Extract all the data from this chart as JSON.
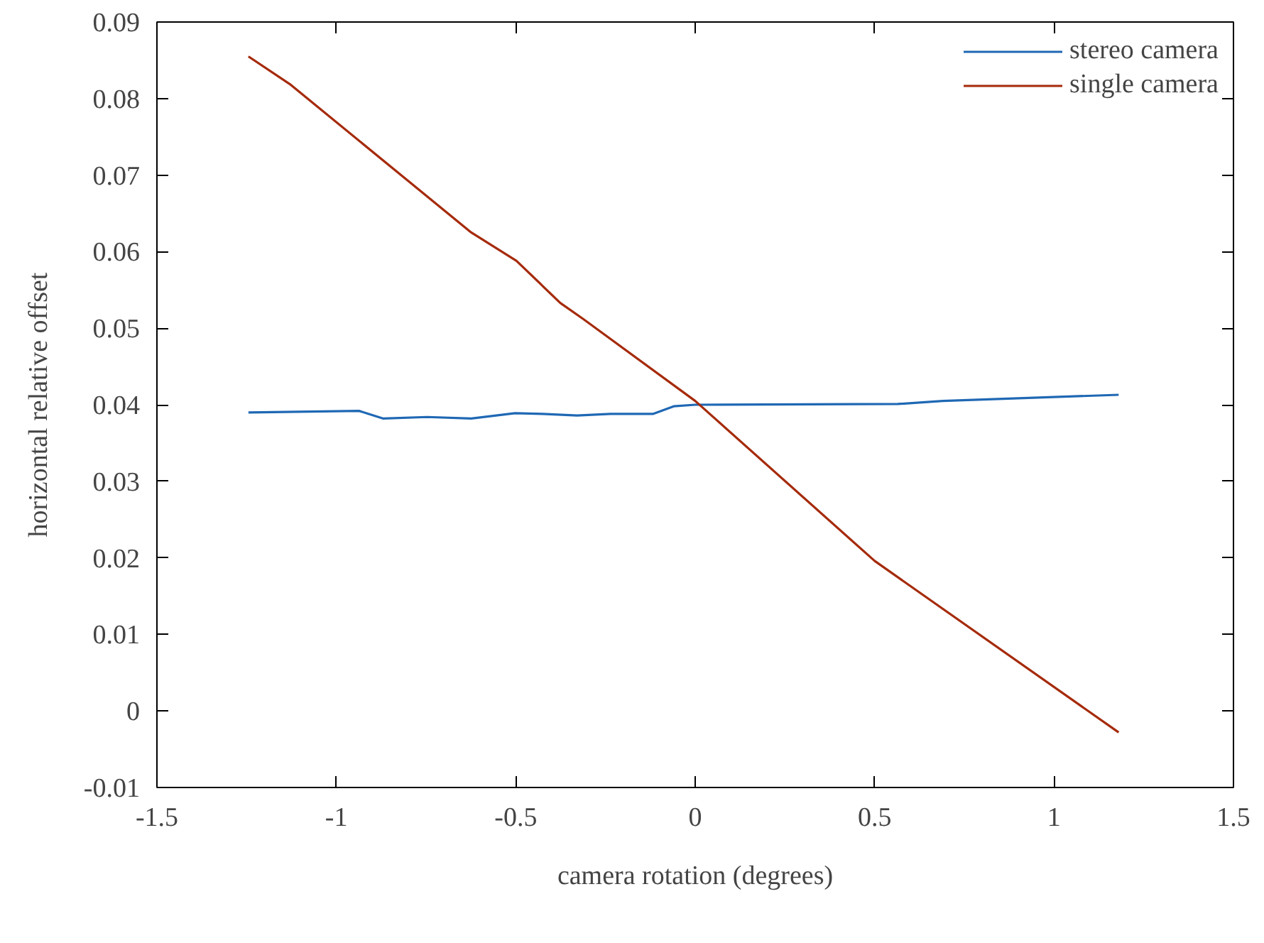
{
  "chart_data": {
    "type": "line",
    "xlabel": "camera rotation (degrees)",
    "ylabel": "horizontal relative offset",
    "xlim": [
      -1.5,
      1.5
    ],
    "xticks": [
      -1.5,
      -1,
      -0.5,
      0,
      0.5,
      1,
      1.5
    ],
    "ylim": [
      -0.01,
      0.09
    ],
    "yticks": [
      -0.01,
      0,
      0.01,
      0.02,
      0.03,
      0.04,
      0.05,
      0.06,
      0.07,
      0.08,
      0.09
    ],
    "grid": false,
    "legend": "top right",
    "marker": "none",
    "line_style": "solid",
    "series": [
      {
        "name": "stereo camera",
        "color": "#1f68b4",
        "x": [
          -1.245,
          -0.937,
          -0.869,
          -0.747,
          -0.624,
          -0.502,
          -0.426,
          -0.329,
          -0.236,
          -0.118,
          -0.06,
          0,
          0.565,
          0.69,
          1.18
        ],
        "values": [
          0.039,
          0.0392,
          0.0382,
          0.0384,
          0.0382,
          0.0389,
          0.0388,
          0.0386,
          0.0388,
          0.0388,
          0.0398,
          0.04,
          0.0401,
          0.0405,
          0.0413
        ]
      },
      {
        "name": "single camera",
        "color": "#a52a0a",
        "x": [
          -1.245,
          -1.13,
          -0.624,
          -0.498,
          -0.376,
          -0.312,
          0,
          0.5,
          1.18
        ],
        "values": [
          0.0855,
          0.0819,
          0.0625,
          0.0588,
          0.0533,
          0.0512,
          0.0405,
          0.0196,
          -0.0028
        ]
      }
    ]
  }
}
